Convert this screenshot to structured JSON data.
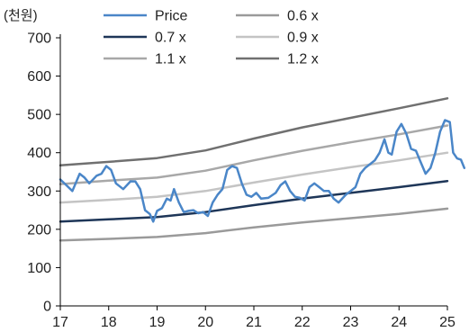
{
  "chart_data": {
    "type": "line",
    "unit_label": "(천원)",
    "xlabel": "",
    "ylabel": "",
    "x_ticks": [
      "17",
      "18",
      "19",
      "20",
      "21",
      "22",
      "23",
      "24",
      "25"
    ],
    "y_ticks": [
      "0",
      "100",
      "200",
      "300",
      "400",
      "500",
      "600",
      "700"
    ],
    "xlim": [
      2017,
      2025
    ],
    "ylim": [
      0,
      700
    ],
    "grid": false,
    "legend_position": "top",
    "series": [
      {
        "name": "Price",
        "color": "#4a86c8",
        "width": 2.5,
        "points": [
          [
            2017.0,
            330
          ],
          [
            2017.1,
            318
          ],
          [
            2017.25,
            300
          ],
          [
            2017.4,
            345
          ],
          [
            2017.5,
            335
          ],
          [
            2017.6,
            320
          ],
          [
            2017.75,
            340
          ],
          [
            2017.85,
            345
          ],
          [
            2017.95,
            365
          ],
          [
            2018.05,
            355
          ],
          [
            2018.15,
            320
          ],
          [
            2018.3,
            305
          ],
          [
            2018.45,
            325
          ],
          [
            2018.55,
            325
          ],
          [
            2018.65,
            305
          ],
          [
            2018.75,
            250
          ],
          [
            2018.85,
            240
          ],
          [
            2018.92,
            220
          ],
          [
            2019.0,
            248
          ],
          [
            2019.1,
            255
          ],
          [
            2019.2,
            280
          ],
          [
            2019.28,
            275
          ],
          [
            2019.35,
            305
          ],
          [
            2019.45,
            270
          ],
          [
            2019.55,
            245
          ],
          [
            2019.65,
            248
          ],
          [
            2019.75,
            250
          ],
          [
            2019.85,
            242
          ],
          [
            2019.95,
            245
          ],
          [
            2020.05,
            235
          ],
          [
            2020.15,
            270
          ],
          [
            2020.25,
            290
          ],
          [
            2020.35,
            305
          ],
          [
            2020.45,
            355
          ],
          [
            2020.55,
            365
          ],
          [
            2020.65,
            360
          ],
          [
            2020.75,
            320
          ],
          [
            2020.85,
            290
          ],
          [
            2020.95,
            285
          ],
          [
            2021.05,
            295
          ],
          [
            2021.15,
            280
          ],
          [
            2021.3,
            282
          ],
          [
            2021.45,
            295
          ],
          [
            2021.55,
            315
          ],
          [
            2021.65,
            325
          ],
          [
            2021.75,
            300
          ],
          [
            2021.85,
            285
          ],
          [
            2021.95,
            282
          ],
          [
            2022.05,
            275
          ],
          [
            2022.15,
            310
          ],
          [
            2022.25,
            320
          ],
          [
            2022.35,
            310
          ],
          [
            2022.45,
            300
          ],
          [
            2022.55,
            300
          ],
          [
            2022.65,
            280
          ],
          [
            2022.75,
            270
          ],
          [
            2022.9,
            290
          ],
          [
            2023.0,
            300
          ],
          [
            2023.1,
            310
          ],
          [
            2023.2,
            345
          ],
          [
            2023.3,
            360
          ],
          [
            2023.4,
            370
          ],
          [
            2023.5,
            380
          ],
          [
            2023.6,
            400
          ],
          [
            2023.7,
            435
          ],
          [
            2023.78,
            400
          ],
          [
            2023.85,
            395
          ],
          [
            2023.95,
            455
          ],
          [
            2024.05,
            475
          ],
          [
            2024.15,
            450
          ],
          [
            2024.25,
            410
          ],
          [
            2024.35,
            405
          ],
          [
            2024.45,
            375
          ],
          [
            2024.55,
            345
          ],
          [
            2024.65,
            360
          ],
          [
            2024.75,
            400
          ],
          [
            2024.85,
            455
          ],
          [
            2024.95,
            485
          ],
          [
            2025.05,
            480
          ],
          [
            2025.12,
            400
          ],
          [
            2025.2,
            385
          ],
          [
            2025.28,
            382
          ],
          [
            2025.35,
            360
          ]
        ]
      },
      {
        "name": "0.6 x",
        "color": "#9a9a9a",
        "width": 2.5,
        "points": [
          [
            2017,
            171
          ],
          [
            2018,
            175
          ],
          [
            2019,
            180
          ],
          [
            2020,
            190
          ],
          [
            2021,
            205
          ],
          [
            2022,
            218
          ],
          [
            2023,
            229
          ],
          [
            2024,
            240
          ],
          [
            2025,
            254
          ]
        ]
      },
      {
        "name": "0.7 x",
        "color": "#1e3658",
        "width": 2.5,
        "points": [
          [
            2017,
            220
          ],
          [
            2018,
            226
          ],
          [
            2019,
            232
          ],
          [
            2020,
            245
          ],
          [
            2021,
            263
          ],
          [
            2022,
            280
          ],
          [
            2023,
            295
          ],
          [
            2024,
            310
          ],
          [
            2025,
            326
          ]
        ]
      },
      {
        "name": "0.9 x",
        "color": "#c4c4c4",
        "width": 2.5,
        "points": [
          [
            2017,
            270
          ],
          [
            2018,
            277
          ],
          [
            2019,
            285
          ],
          [
            2020,
            300
          ],
          [
            2021,
            322
          ],
          [
            2022,
            343
          ],
          [
            2023,
            362
          ],
          [
            2024,
            380
          ],
          [
            2025,
            400
          ]
        ]
      },
      {
        "name": "1.1 x",
        "color": "#a8a8a8",
        "width": 2.5,
        "points": [
          [
            2017,
            318
          ],
          [
            2018,
            327
          ],
          [
            2019,
            335
          ],
          [
            2020,
            353
          ],
          [
            2021,
            380
          ],
          [
            2022,
            405
          ],
          [
            2023,
            427
          ],
          [
            2024,
            448
          ],
          [
            2025,
            471
          ]
        ]
      },
      {
        "name": "1.2 x",
        "color": "#707070",
        "width": 2.5,
        "points": [
          [
            2017,
            367
          ],
          [
            2018,
            376
          ],
          [
            2019,
            386
          ],
          [
            2020,
            406
          ],
          [
            2021,
            437
          ],
          [
            2022,
            466
          ],
          [
            2023,
            491
          ],
          [
            2024,
            516
          ],
          [
            2025,
            542
          ]
        ]
      }
    ]
  }
}
